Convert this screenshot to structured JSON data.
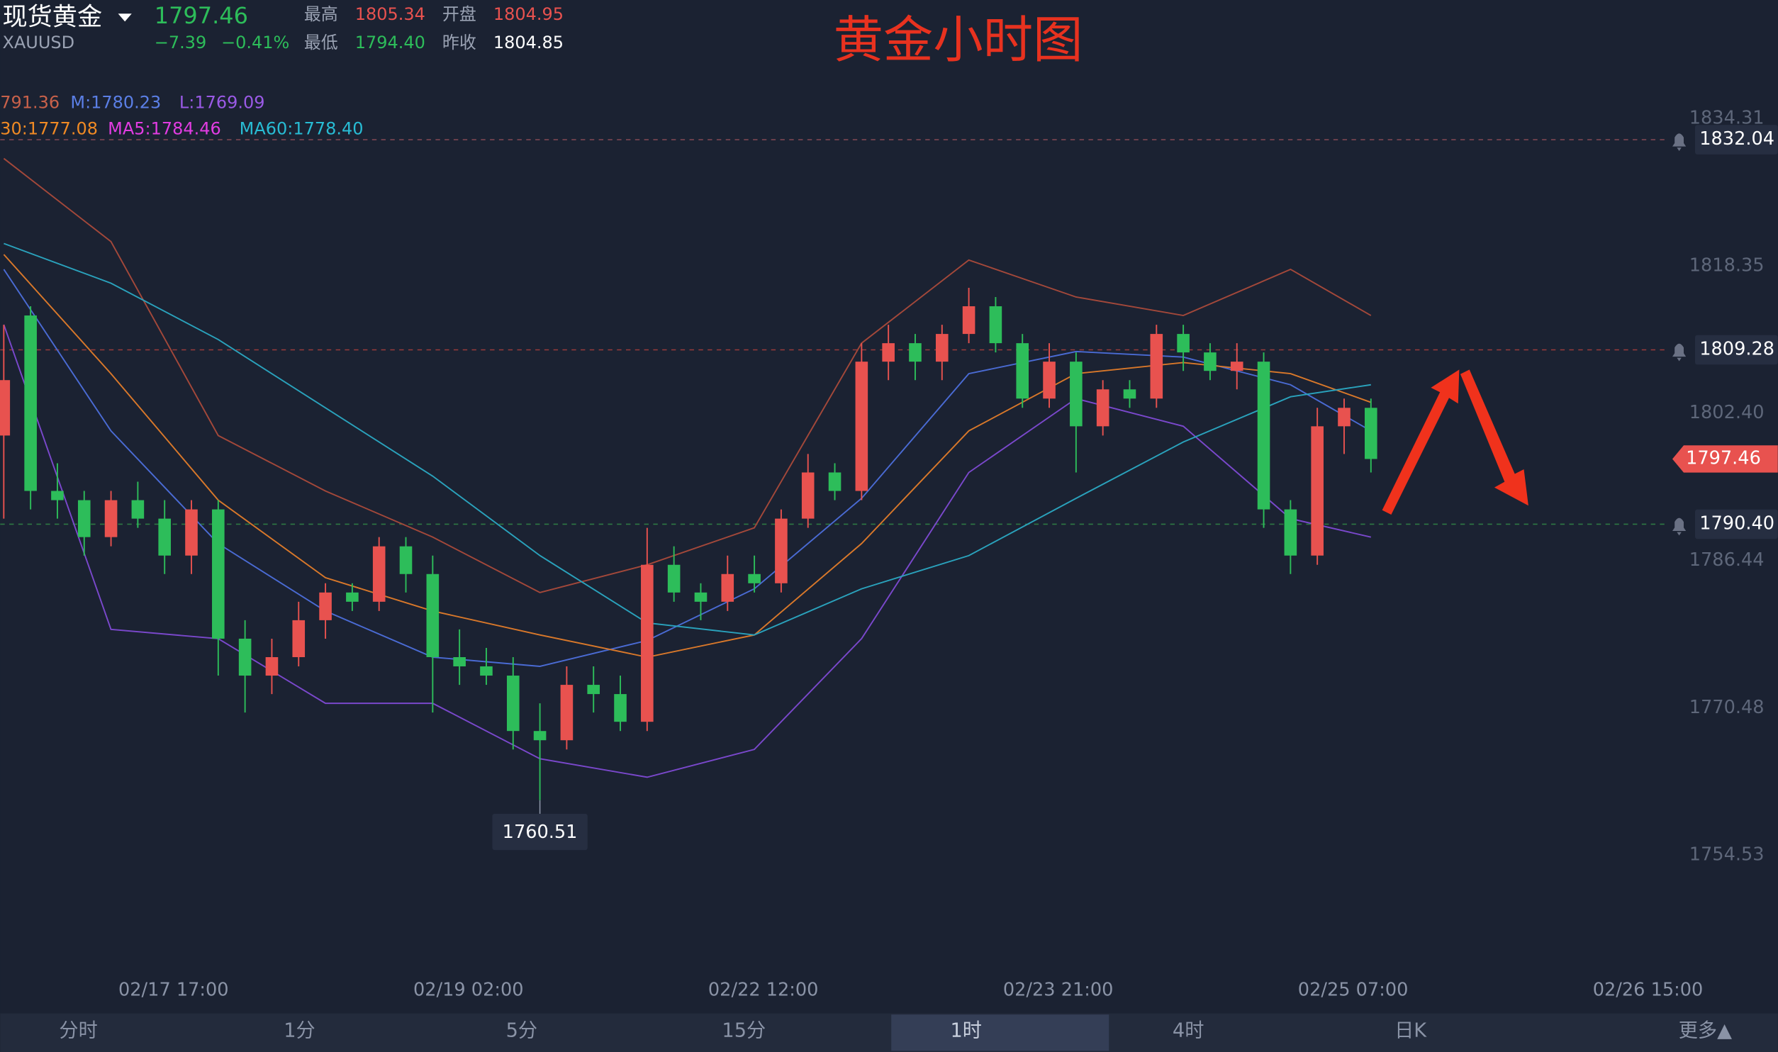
{
  "header": {
    "name": "现货黄金",
    "symbol": "XAUUSD",
    "price": "1797.46",
    "change": "−7.39",
    "change_pct": "−0.41%",
    "high_label": "最高",
    "high": "1805.34",
    "open_label": "开盘",
    "open": "1804.95",
    "low_label": "最低",
    "low": "1794.40",
    "prev_close_label": "昨收",
    "prev_close": "1804.85"
  },
  "indicators": [
    {
      "text": "791.36",
      "color": "#c8614a"
    },
    {
      "text": "M:1780.23",
      "color": "#5b7fe6"
    },
    {
      "text": "L:1769.09",
      "color": "#9a5ae6"
    },
    {
      "text": "30:1777.08",
      "color": "#f08a24"
    },
    {
      "text": "MA5:1784.46",
      "color": "#e23ce2"
    },
    {
      "text": "MA60:1778.40",
      "color": "#28bcd4"
    }
  ],
  "chart_data": {
    "type": "candlestick",
    "title": "黄金小时图",
    "up_color": "#e8524f",
    "down_color": "#2dbd5a",
    "xlim": [
      -19.4,
      167.1
    ],
    "ylim": [
      1742.2,
      1839.8
    ],
    "xticks": [
      {
        "value": 0,
        "label": "02/17 17:00"
      },
      {
        "value": 33,
        "label": "02/19 02:00"
      },
      {
        "value": 66,
        "label": "02/22 12:00"
      },
      {
        "value": 99,
        "label": "02/23 21:00"
      },
      {
        "value": 132,
        "label": "02/25 07:00"
      },
      {
        "value": 165,
        "label": "02/26 15:00"
      }
    ],
    "yticks": [
      1834.31,
      1818.35,
      {
        "value": 1802.4,
        "label": "1802.40"
      },
      1786.44,
      1770.48,
      1754.53
    ],
    "x": [
      -19,
      -16,
      -13,
      -10,
      -7,
      -4,
      -1,
      2,
      5,
      8,
      11,
      14,
      17,
      20,
      23,
      26,
      29,
      32,
      35,
      38,
      41,
      44,
      47,
      50,
      53,
      56,
      59,
      62,
      65,
      68,
      71,
      74,
      77,
      80,
      83,
      86,
      89,
      92,
      95,
      98,
      101,
      104,
      107,
      110,
      113,
      116,
      119,
      122,
      125,
      128,
      131,
      134
    ],
    "open": [
      1800,
      1813,
      1794,
      1793,
      1789,
      1793,
      1791,
      1787,
      1792,
      1778,
      1774,
      1776,
      1780,
      1783,
      1782,
      1788,
      1785,
      1776,
      1775,
      1774,
      1768,
      1767,
      1773,
      1772,
      1769,
      1786,
      1783,
      1782,
      1785,
      1784,
      1791,
      1796,
      1794,
      1808,
      1810,
      1808,
      1811,
      1814,
      1810,
      1804,
      1808,
      1801,
      1805,
      1804,
      1811,
      1809,
      1807,
      1808,
      1792,
      1787,
      1801,
      1803
    ],
    "high": [
      1812,
      1814,
      1797,
      1794,
      1794,
      1795,
      1793,
      1793,
      1793,
      1780,
      1778,
      1782,
      1784,
      1784,
      1789,
      1789,
      1787,
      1779,
      1777,
      1776,
      1771,
      1775,
      1775,
      1774,
      1790,
      1788,
      1784,
      1787,
      1787,
      1792,
      1798,
      1797,
      1810,
      1812,
      1811,
      1812,
      1816,
      1815,
      1811,
      1810,
      1809,
      1806,
      1806,
      1812,
      1812,
      1810,
      1810,
      1809,
      1793,
      1803,
      1804,
      1804
    ],
    "low": [
      1791,
      1792,
      1791,
      1787,
      1788,
      1790,
      1785,
      1785,
      1774,
      1770,
      1772,
      1775,
      1778,
      1781,
      1781,
      1783,
      1770,
      1773,
      1773,
      1766,
      1760.51,
      1766,
      1770,
      1768,
      1768,
      1782,
      1780,
      1781,
      1783,
      1783,
      1790,
      1793,
      1793,
      1806,
      1806,
      1806,
      1810,
      1809,
      1803,
      1803,
      1796,
      1800,
      1803,
      1803,
      1807,
      1806,
      1805,
      1790,
      1785,
      1786,
      1798,
      1796
    ],
    "close": [
      1806,
      1794,
      1793,
      1789,
      1793,
      1791,
      1787,
      1792,
      1778,
      1774,
      1776,
      1780,
      1783,
      1782,
      1788,
      1785,
      1776,
      1775,
      1774,
      1768,
      1767,
      1773,
      1772,
      1769,
      1786,
      1783,
      1782,
      1785,
      1784,
      1791,
      1796,
      1794,
      1808,
      1810,
      1808,
      1811,
      1814,
      1810,
      1804,
      1808,
      1801,
      1805,
      1804,
      1811,
      1809,
      1807,
      1808,
      1792,
      1787,
      1801,
      1803,
      1797.46
    ],
    "lines": [
      {
        "color": "#a3483a",
        "x": [
          -19,
          -7,
          5,
          17,
          29,
          41,
          53,
          65,
          77,
          89,
          101,
          113,
          125,
          134
        ],
        "values": [
          1830,
          1821,
          1800,
          1794,
          1789,
          1783,
          1786,
          1790,
          1810,
          1819,
          1815,
          1813,
          1818,
          1813
        ]
      },
      {
        "color": "#4a6bd4",
        "x": [
          -19,
          -7,
          5,
          17,
          29,
          41,
          53,
          65,
          77,
          89,
          101,
          113,
          125,
          134
        ],
        "values": [
          1818,
          1800.5,
          1788.3,
          1781,
          1776,
          1775,
          1777.8,
          1783.4,
          1793.2,
          1806.7,
          1809.1,
          1808.5,
          1805.5,
          1800.5
        ]
      },
      {
        "color": "#7a48cc",
        "x": [
          -19,
          -7,
          5,
          17,
          29,
          41,
          53,
          65,
          77,
          89,
          101,
          113,
          125,
          134
        ],
        "values": [
          1812,
          1779,
          1778,
          1771,
          1771,
          1765,
          1763,
          1766,
          1778,
          1796,
          1804,
          1801,
          1791,
          1789
        ]
      },
      {
        "color": "#d9782a",
        "x": [
          -19,
          -7,
          5,
          17,
          29,
          41,
          53,
          65,
          77,
          89,
          101,
          113,
          125,
          134
        ],
        "values": [
          1819.6,
          1806.7,
          1793,
          1784.6,
          1781,
          1778.4,
          1776,
          1778.4,
          1788.3,
          1800.5,
          1806.7,
          1807.9,
          1806.7,
          1803.6
        ]
      },
      {
        "color": "#2aa2bc",
        "x": [
          -19,
          -7,
          5,
          17,
          29,
          41,
          53,
          65,
          77,
          89,
          101,
          113,
          125,
          134
        ],
        "values": [
          1820.8,
          1816.5,
          1810.4,
          1803,
          1795.6,
          1787,
          1779.7,
          1778.4,
          1783.4,
          1787,
          1793.2,
          1799.3,
          1804.2,
          1805.5
        ]
      }
    ],
    "alerts": [
      {
        "price": 1832.04,
        "color": "#7c4652"
      },
      {
        "price": 1809.28,
        "color": "#9a3b3b"
      },
      {
        "price": {
          "value": 1790.4,
          "label": "1790.40"
        },
        "color": "#2e7a44"
      }
    ]
  },
  "tabs": [
    "分时",
    "1分",
    "5分",
    "15分",
    "1时",
    "4时",
    "日K",
    "更多▲"
  ],
  "active_tab_index": 4
}
